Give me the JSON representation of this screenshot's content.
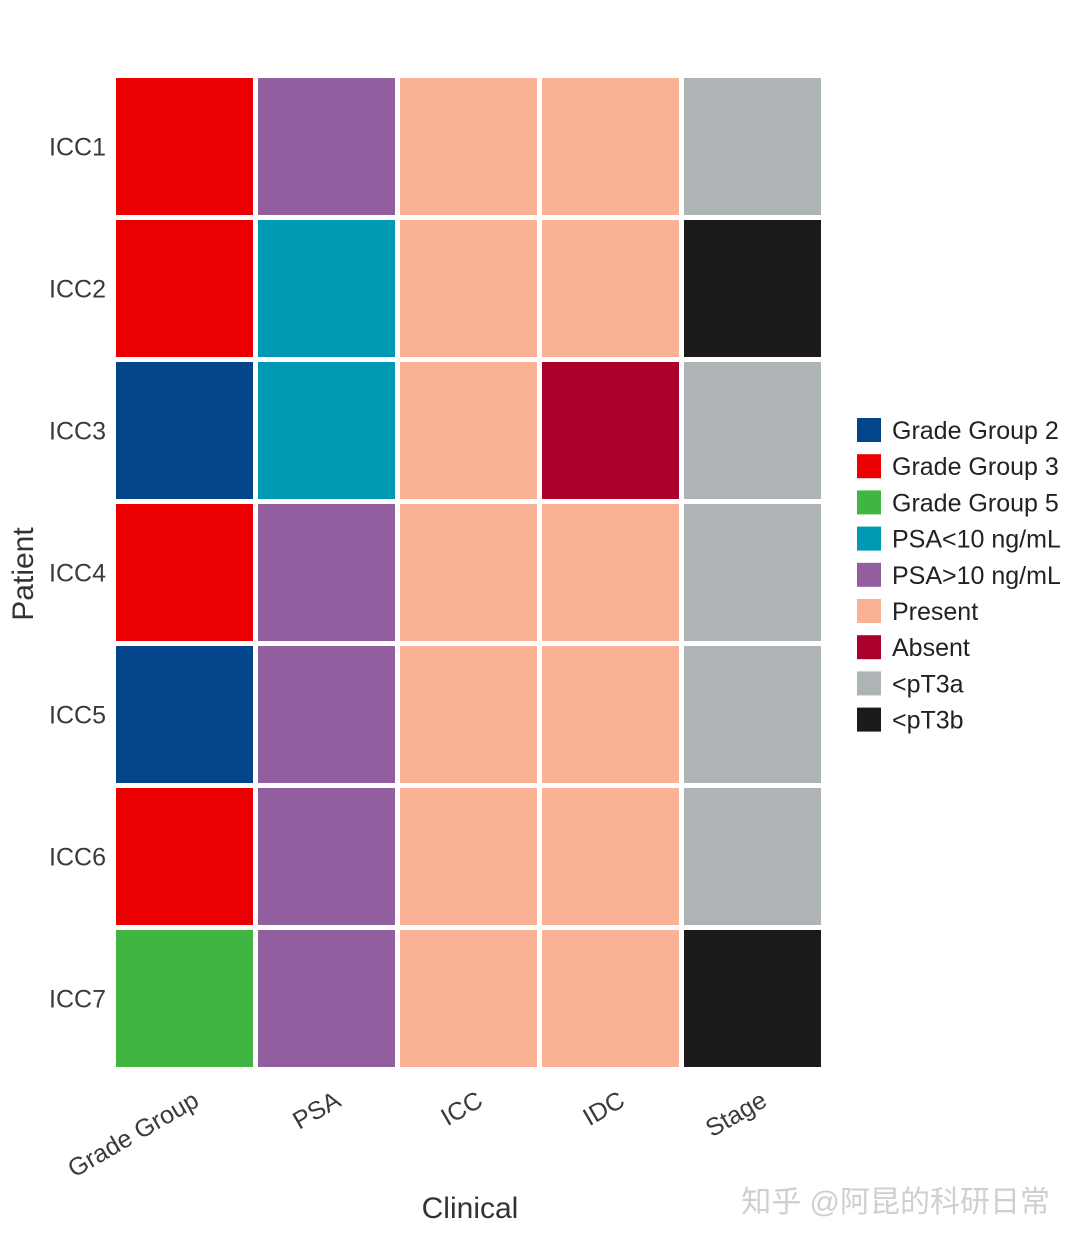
{
  "chart_data": {
    "type": "heatmap",
    "xlabel": "Clinical",
    "ylabel": "Patient",
    "x": [
      "Grade Group",
      "PSA",
      "ICC",
      "IDC",
      "Stage"
    ],
    "y": [
      "ICC1",
      "ICC2",
      "ICC3",
      "ICC4",
      "ICC5",
      "ICC6",
      "ICC7"
    ],
    "cells": [
      [
        "Grade Group 3",
        "PSA>10 ng/mL",
        "Present",
        "Present",
        "<pT3a"
      ],
      [
        "Grade Group 3",
        "PSA<10 ng/mL",
        "Present",
        "Present",
        "<pT3b"
      ],
      [
        "Grade Group 2",
        "PSA<10 ng/mL",
        "Present",
        "Absent",
        "<pT3a"
      ],
      [
        "Grade Group 3",
        "PSA>10 ng/mL",
        "Present",
        "Present",
        "<pT3a"
      ],
      [
        "Grade Group 2",
        "PSA>10 ng/mL",
        "Present",
        "Present",
        "<pT3a"
      ],
      [
        "Grade Group 3",
        "PSA>10 ng/mL",
        "Present",
        "Present",
        "<pT3a"
      ],
      [
        "Grade Group 5",
        "PSA>10 ng/mL",
        "Present",
        "Present",
        "<pT3b"
      ]
    ],
    "legend": [
      {
        "label": "Grade Group 2",
        "color": "#03458a"
      },
      {
        "label": "Grade Group 3",
        "color": "#ea0000"
      },
      {
        "label": "Grade Group 5",
        "color": "#41b541"
      },
      {
        "label": "PSA<10 ng/mL",
        "color": "#0099b3"
      },
      {
        "label": "PSA>10 ng/mL",
        "color": "#925ea0"
      },
      {
        "label": "Present",
        "color": "#fbb195"
      },
      {
        "label": "Absent",
        "color": "#ac002c"
      },
      {
        "label": "<pT3a",
        "color": "#aeb4b5"
      },
      {
        "label": "<pT3b",
        "color": "#1c1a1b"
      }
    ],
    "legend_position": "right",
    "grid": false
  },
  "watermark": "知乎 @阿昆的科研日常"
}
